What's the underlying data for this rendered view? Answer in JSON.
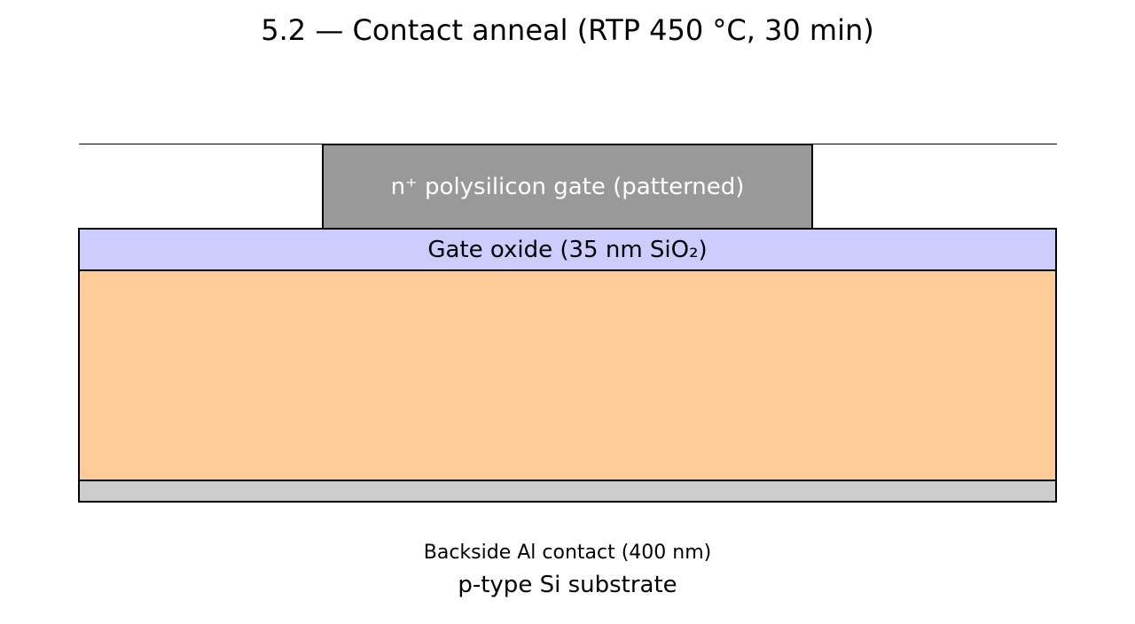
{
  "title": "5.2 — Contact anneal (RTP 450 °C, 30 min)",
  "layers": {
    "gate": {
      "label": "n⁺ polysilicon gate (patterned)",
      "fill": "#999999",
      "text_color": "#ffffff"
    },
    "oxide": {
      "label": "Gate oxide (35 nm SiO₂)",
      "fill": "#ccccff"
    },
    "substrate": {
      "label": "p-type Si substrate",
      "fill": "#ffcc99"
    },
    "backside": {
      "label": "Backside Al contact (400 nm)",
      "fill": "#cccccc"
    }
  }
}
